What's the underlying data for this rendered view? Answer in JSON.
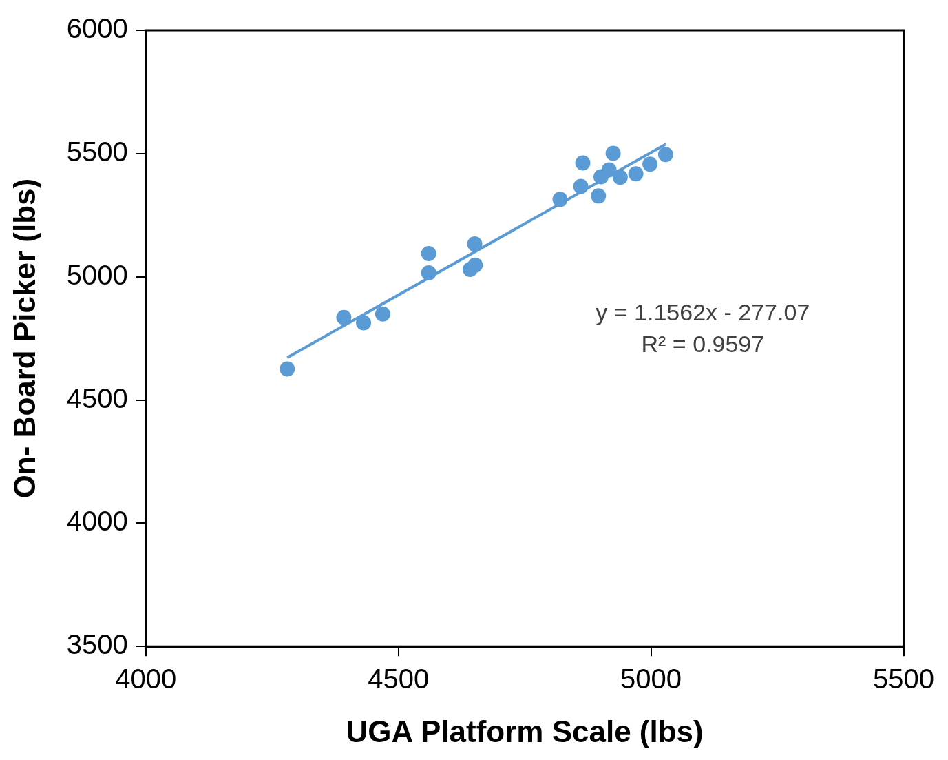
{
  "chart_data": {
    "type": "scatter",
    "xlabel": "UGA Platform Scale (lbs)",
    "ylabel": "On- Board Picker (lbs)",
    "xlim": [
      4000,
      5500
    ],
    "xticks": [
      4000,
      4500,
      5000,
      5500
    ],
    "ylim": [
      3500,
      6000
    ],
    "yticks": [
      3500,
      4000,
      4500,
      5000,
      5500,
      6000
    ],
    "grid": false,
    "legend": false,
    "marker": "circle",
    "annotations": [
      "y = 1.1562x - 277.07",
      "R² = 0.9597"
    ],
    "series": [
      {
        "type": "scatter",
        "color": "#5b9bd5",
        "x": [
          4280,
          4392,
          4431,
          4469,
          4560,
          4560,
          4642,
          4652,
          4651,
          4820,
          4865,
          4861,
          4896,
          4901,
          4917,
          4925,
          4939,
          4970,
          4998,
          5029
        ],
        "values": [
          4626,
          4835,
          4813,
          4849,
          5094,
          5016,
          5030,
          5047,
          5133,
          5314,
          5462,
          5367,
          5328,
          5406,
          5434,
          5501,
          5404,
          5418,
          5457,
          5496
        ]
      },
      {
        "type": "line",
        "color": "#5b9bd5",
        "line_style": "solid",
        "marker": "none",
        "x": [
          4280,
          5030
        ],
        "values": [
          4672,
          5539
        ]
      }
    ]
  }
}
